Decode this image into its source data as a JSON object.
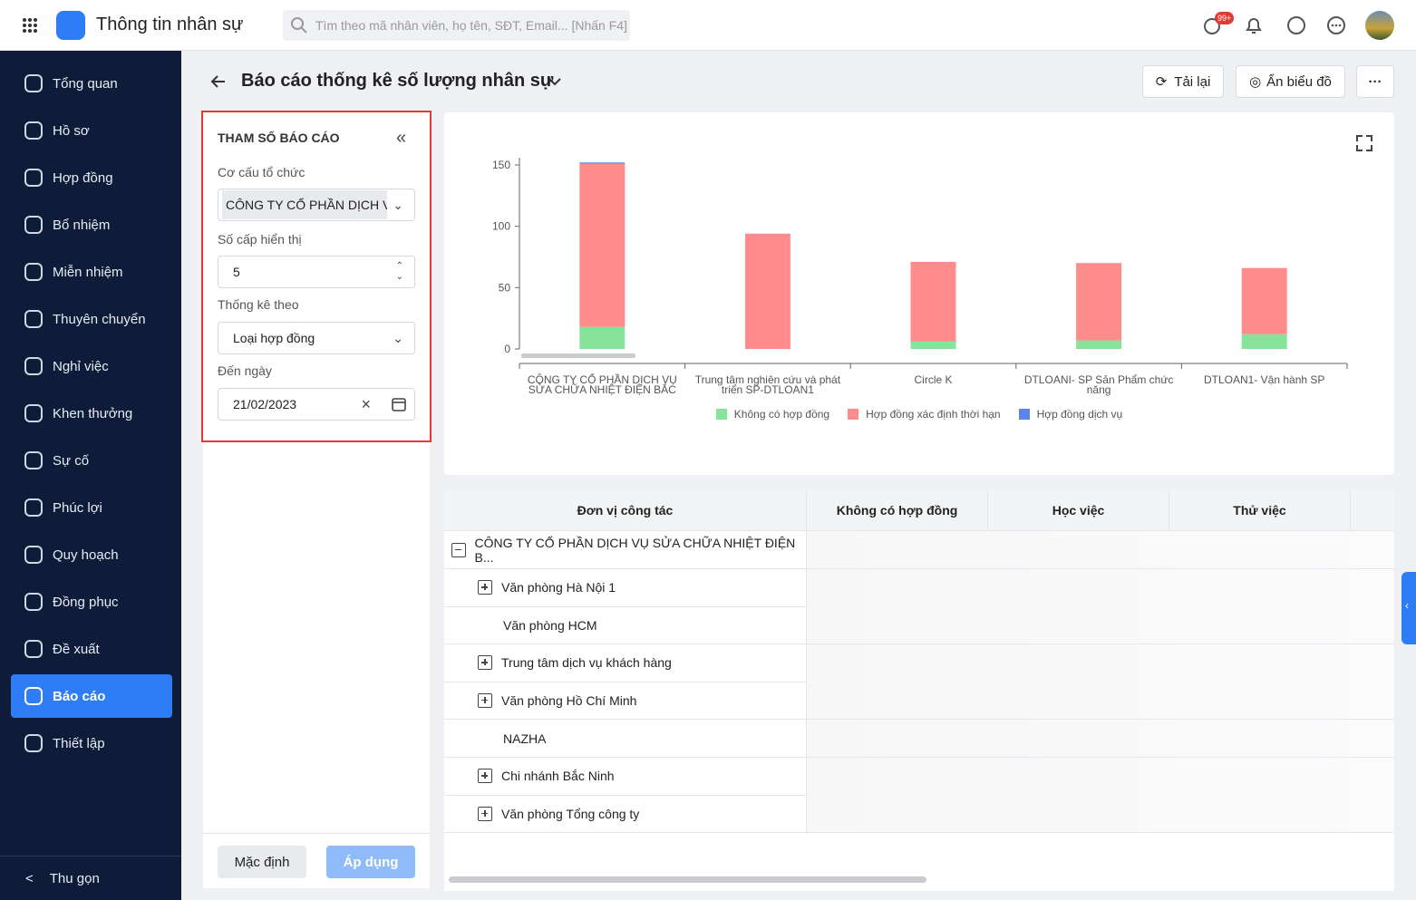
{
  "header": {
    "app_title": "Thông tin nhân sự",
    "search_placeholder": "Tìm theo mã nhân viên, họ tên, SĐT, Email... [Nhấn F4]",
    "badge": "99+"
  },
  "sidebar": {
    "items": [
      "Tổng quan",
      "Hồ sơ",
      "Hợp đồng",
      "Bổ nhiệm",
      "Miễn nhiệm",
      "Thuyên chuyển",
      "Nghỉ việc",
      "Khen thưởng",
      "Sự cố",
      "Phúc lợi",
      "Quy hoạch",
      "Đồng phục",
      "Đề xuất",
      "Báo cáo",
      "Thiết lập"
    ],
    "active": "Báo cáo",
    "collapse": "Thu gọn"
  },
  "page": {
    "title": "Báo cáo thống kê số lượng nhân sự",
    "reload": "Tải lại",
    "hide_chart": "Ẩn biểu đồ"
  },
  "params": {
    "title": "THAM SỐ BÁO CÁO",
    "org_label": "Cơ cấu tổ chức",
    "org_value": "CÔNG TY CỔ PHẦN DỊCH VỤ",
    "levels_label": "Số cấp hiển thị",
    "levels_value": 5,
    "stat_label": "Thống kê theo",
    "stat_value": "Loại hợp đồng",
    "date_label": "Đến ngày",
    "date_value": "21/02/2023",
    "default_button": "Mặc định",
    "apply_button": "Áp dụng"
  },
  "chart_data": {
    "type": "bar",
    "stacked": true,
    "categories": [
      "CÔNG TY CỔ PHẦN DỊCH VỤ SỬA CHỮA NHIỆT ĐIỆN BẮC",
      "Trung tâm nghiên cứu và phát triển SP-DTLOAN1",
      "Circle K",
      "DTLOANI- SP Sản Phẩm chức năng",
      "DTLOAN1- Vận hành SP"
    ],
    "series": [
      {
        "name": "Không có hợp đồng",
        "color": "#86e39a",
        "values": [
          18,
          0,
          6,
          7,
          12
        ]
      },
      {
        "name": "Hợp đồng xác định thời hạn",
        "color": "#ff8c8c",
        "values": [
          133,
          94,
          65,
          63,
          54
        ]
      },
      {
        "name": "Hợp đồng dịch vụ",
        "color": "#5b86e5",
        "values": [
          1,
          0,
          0,
          0,
          0
        ]
      }
    ],
    "ylim": [
      0,
      150
    ],
    "yticks": [
      0,
      50,
      100,
      150
    ],
    "grid": false,
    "legend": "bottom"
  },
  "table": {
    "columns": [
      "Đơn vị công tác",
      "Không có hợp đồng",
      "Học việc",
      "Thử việc"
    ],
    "rows": [
      "CÔNG TY CỔ PHẦN DỊCH VỤ SỬA CHỮA NHIỆT ĐIỆN B...",
      "Văn phòng Hà Nội 1",
      "Văn phòng HCM",
      "Trung tâm dịch vụ khách hàng",
      "Văn phòng Hồ Chí Minh",
      "NAZHA",
      "Chi nhánh Bắc Ninh",
      "Văn phòng Tổng công ty"
    ]
  }
}
